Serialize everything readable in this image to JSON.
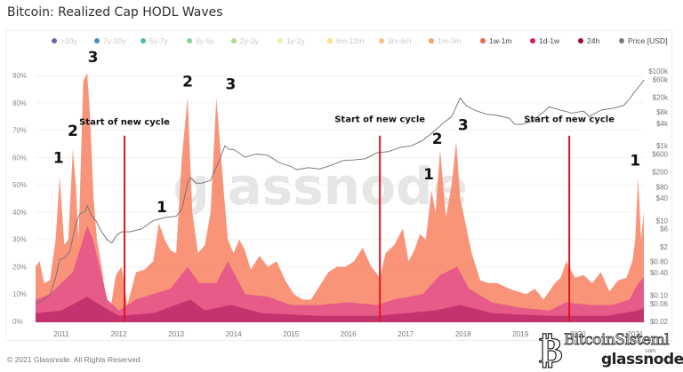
{
  "header": {
    "title": "Bitcoin: Realized Cap HODL Waves"
  },
  "footer": {
    "copyright": "© 2021 Glassnode. All Rights Reserved."
  },
  "watermarks": {
    "center": "glassnode",
    "brand": "BitcoinSisteml",
    "brand_tld": ".com",
    "corner": "glassnode"
  },
  "legend": [
    {
      "label": ">10y",
      "color": "#4b3fa0",
      "faded": true
    },
    {
      "label": "7y-10y",
      "color": "#1f6fb0",
      "faded": true
    },
    {
      "label": "5y-7y",
      "color": "#1ea99d",
      "faded": true
    },
    {
      "label": "3y-5y",
      "color": "#66c58a",
      "faded": true
    },
    {
      "label": "2y-3y",
      "color": "#9ed36a",
      "faded": true
    },
    {
      "label": "1y-2y",
      "color": "#e4ee8c",
      "faded": true
    },
    {
      "label": "6m-12m",
      "color": "#f7d66a",
      "faded": true
    },
    {
      "label": "3m-6m",
      "color": "#f5b45d",
      "faded": true
    },
    {
      "label": "1m-3m",
      "color": "#f58a44",
      "faded": true
    },
    {
      "label": "1w-1m",
      "color": "#f2644f",
      "faded": false
    },
    {
      "label": "1d-1w",
      "color": "#d81d5b",
      "faded": false
    },
    {
      "label": "24h",
      "color": "#a3063f",
      "faded": false
    },
    {
      "label": "Price [USD]",
      "color": "#7d7d7d",
      "faded": false
    }
  ],
  "chart_data": {
    "type": "area",
    "title": "Bitcoin: Realized Cap HODL Waves",
    "xlabel": "",
    "ylabel": "",
    "x_ticks": [
      "2011",
      "2012",
      "2013",
      "2014",
      "2015",
      "2016",
      "2017",
      "2018",
      "2019",
      "2020",
      "2021"
    ],
    "xlim": [
      2010.55,
      2021.15
    ],
    "y_left_ticks": [
      "0%",
      "10%",
      "20%",
      "30%",
      "40%",
      "50%",
      "60%",
      "70%",
      "80%",
      "90%"
    ],
    "ylim_left": [
      0,
      93
    ],
    "y_right_ticks": [
      "$0.02",
      "$0.06",
      "$0.10",
      "$0.40",
      "$0.80",
      "$2",
      "$6",
      "$10",
      "$40",
      "$80",
      "$200",
      "$600",
      "$1k",
      "$4k",
      "$8k",
      "$20k",
      "$60k",
      "$100k"
    ],
    "ylim_right_log": [
      0.02,
      100000
    ],
    "grid": true,
    "series": [
      {
        "name": "1w-1m",
        "color": "#f98b6e",
        "x": [
          2010.55,
          2010.62,
          2010.7,
          2010.8,
          2010.9,
          2010.97,
          2011.05,
          2011.12,
          2011.2,
          2011.25,
          2011.3,
          2011.38,
          2011.45,
          2011.5,
          2011.56,
          2011.62,
          2011.7,
          2011.78,
          2011.85,
          2011.95,
          2012.05,
          2012.15,
          2012.3,
          2012.45,
          2012.6,
          2012.7,
          2012.8,
          2012.9,
          2013.0,
          2013.1,
          2013.2,
          2013.28,
          2013.38,
          2013.5,
          2013.6,
          2013.7,
          2013.8,
          2013.9,
          2014.0,
          2014.1,
          2014.2,
          2014.3,
          2014.45,
          2014.6,
          2014.75,
          2014.9,
          2015.05,
          2015.2,
          2015.35,
          2015.5,
          2015.65,
          2015.8,
          2015.95,
          2016.1,
          2016.25,
          2016.4,
          2016.55,
          2016.65,
          2016.8,
          2016.95,
          2017.05,
          2017.15,
          2017.25,
          2017.35,
          2017.45,
          2017.52,
          2017.6,
          2017.7,
          2017.8,
          2017.88,
          2017.95,
          2018.05,
          2018.15,
          2018.3,
          2018.45,
          2018.6,
          2018.8,
          2018.95,
          2019.1,
          2019.25,
          2019.4,
          2019.5,
          2019.6,
          2019.7,
          2019.8,
          2019.95,
          2020.1,
          2020.25,
          2020.4,
          2020.55,
          2020.7,
          2020.85,
          2020.95,
          2021.0,
          2021.05,
          2021.1,
          2021.15
        ],
        "values": [
          20,
          22,
          14,
          15,
          30,
          53,
          28,
          30,
          63,
          50,
          30,
          88,
          91,
          75,
          45,
          30,
          20,
          8,
          4,
          17,
          20,
          6,
          18,
          19,
          22,
          36,
          30,
          26,
          25,
          60,
          82,
          40,
          25,
          28,
          40,
          82,
          55,
          30,
          25,
          30,
          26,
          19,
          24,
          20,
          22,
          15,
          10,
          8,
          8,
          13,
          18,
          20,
          20,
          22,
          27,
          20,
          16,
          25,
          28,
          34,
          22,
          26,
          32,
          30,
          48,
          40,
          63,
          38,
          50,
          66,
          45,
          35,
          25,
          15,
          14,
          14,
          12,
          11,
          10,
          12,
          8,
          11,
          14,
          16,
          22,
          16,
          17,
          14,
          18,
          11,
          15,
          16,
          22,
          30,
          53,
          30,
          40
        ]
      },
      {
        "name": "1d-1w",
        "color": "#e4568a",
        "x": [
          2010.55,
          2010.8,
          2011.0,
          2011.2,
          2011.45,
          2011.55,
          2011.8,
          2012.0,
          2012.3,
          2012.6,
          2012.9,
          2013.2,
          2013.4,
          2013.7,
          2013.9,
          2014.2,
          2014.6,
          2015.0,
          2015.5,
          2016.0,
          2016.5,
          2016.8,
          2017.3,
          2017.6,
          2017.9,
          2018.1,
          2018.5,
          2019.0,
          2019.5,
          2019.8,
          2020.2,
          2020.6,
          2020.9,
          2021.05,
          2021.15
        ],
        "values": [
          8,
          10,
          14,
          18,
          35,
          30,
          8,
          4,
          8,
          10,
          12,
          20,
          14,
          14,
          22,
          10,
          9,
          6,
          6,
          7,
          6,
          8,
          10,
          17,
          20,
          12,
          7,
          5,
          4,
          7,
          6,
          6,
          8,
          14,
          16
        ]
      },
      {
        "name": "24h",
        "color": "#c2306c",
        "x": [
          2010.55,
          2011.0,
          2011.45,
          2011.6,
          2012.0,
          2012.6,
          2013.25,
          2013.5,
          2013.95,
          2014.5,
          2015.5,
          2016.5,
          2017.5,
          2017.95,
          2018.5,
          2019.5,
          2020.5,
          2021.05,
          2021.15
        ],
        "values": [
          3,
          4,
          9,
          7,
          2,
          3,
          8,
          4,
          6,
          3,
          2,
          2,
          4,
          6,
          3,
          2,
          2,
          4,
          5
        ]
      }
    ],
    "price_series": {
      "name": "Price [USD]",
      "color": "#6e6e6e",
      "x": [
        2010.55,
        2010.65,
        2010.8,
        2010.9,
        2010.97,
        2011.05,
        2011.15,
        2011.25,
        2011.32,
        2011.42,
        2011.45,
        2011.52,
        2011.6,
        2011.7,
        2011.8,
        2011.88,
        2011.96,
        2012.05,
        2012.2,
        2012.4,
        2012.6,
        2012.8,
        2013.0,
        2013.1,
        2013.2,
        2013.25,
        2013.35,
        2013.45,
        2013.6,
        2013.75,
        2013.85,
        2013.92,
        2014.0,
        2014.2,
        2014.4,
        2014.6,
        2014.8,
        2015.0,
        2015.1,
        2015.3,
        2015.5,
        2015.7,
        2015.9,
        2016.1,
        2016.3,
        2016.5,
        2016.7,
        2016.9,
        2017.1,
        2017.3,
        2017.5,
        2017.65,
        2017.8,
        2017.95,
        2018.05,
        2018.2,
        2018.4,
        2018.6,
        2018.8,
        2018.9,
        2019.0,
        2019.2,
        2019.4,
        2019.5,
        2019.7,
        2019.9,
        2020.1,
        2020.2,
        2020.4,
        2020.6,
        2020.8,
        2020.9,
        2021.0,
        2021.1,
        2021.15
      ],
      "values": [
        0.06,
        0.07,
        0.1,
        0.3,
        0.9,
        1,
        1.5,
        8,
        15,
        18,
        25,
        14,
        10,
        5,
        3,
        2.5,
        4,
        5,
        5,
        6,
        10,
        12,
        13,
        20,
        100,
        140,
        100,
        100,
        120,
        400,
        1000,
        800,
        800,
        500,
        600,
        550,
        350,
        280,
        230,
        260,
        240,
        300,
        400,
        420,
        450,
        650,
        700,
        900,
        1000,
        1400,
        2500,
        4000,
        6000,
        19000,
        12000,
        9000,
        7000,
        6500,
        5500,
        3800,
        3700,
        4500,
        8000,
        11000,
        9000,
        7500,
        8500,
        6000,
        9000,
        10000,
        12000,
        18000,
        29000,
        45000,
        58000
      ]
    },
    "annotations": [
      {
        "text": "1",
        "x": 2010.95,
        "y": 58
      },
      {
        "text": "2",
        "x": 2011.2,
        "y": 68
      },
      {
        "text": "3",
        "x": 2011.55,
        "y": 95
      },
      {
        "text": "Start of new cycle",
        "x": 2012.1,
        "y": 72
      },
      {
        "text": "1",
        "x": 2012.75,
        "y": 40
      },
      {
        "text": "2",
        "x": 2013.2,
        "y": 86
      },
      {
        "text": "3",
        "x": 2013.95,
        "y": 85
      },
      {
        "text": "Start of new cycle",
        "x": 2016.55,
        "y": 73
      },
      {
        "text": "1",
        "x": 2017.4,
        "y": 52
      },
      {
        "text": "2",
        "x": 2017.55,
        "y": 65
      },
      {
        "text": "3",
        "x": 2018.0,
        "y": 70
      },
      {
        "text": "Start of new cycle",
        "x": 2019.85,
        "y": 73
      },
      {
        "text": "1",
        "x": 2021.0,
        "y": 57
      }
    ],
    "cycle_lines": [
      2012.1,
      2016.55,
      2019.85
    ]
  }
}
